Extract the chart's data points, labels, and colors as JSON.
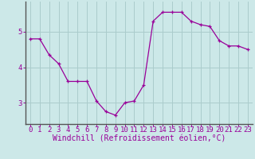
{
  "x": [
    0,
    1,
    2,
    3,
    4,
    5,
    6,
    7,
    8,
    9,
    10,
    11,
    12,
    13,
    14,
    15,
    16,
    17,
    18,
    19,
    20,
    21,
    22,
    23
  ],
  "y": [
    4.8,
    4.8,
    4.35,
    4.1,
    3.6,
    3.6,
    3.6,
    3.05,
    2.75,
    2.65,
    3.0,
    3.05,
    3.5,
    5.3,
    5.55,
    5.55,
    5.55,
    5.3,
    5.2,
    5.15,
    4.75,
    4.6,
    4.6,
    4.5
  ],
  "line_color": "#990099",
  "marker_color": "#990099",
  "bg_color": "#cce8e8",
  "grid_color": "#aacccc",
  "xlabel": "Windchill (Refroidissement éolien,°C)",
  "yticks": [
    3,
    4,
    5
  ],
  "xticks": [
    0,
    1,
    2,
    3,
    4,
    5,
    6,
    7,
    8,
    9,
    10,
    11,
    12,
    13,
    14,
    15,
    16,
    17,
    18,
    19,
    20,
    21,
    22,
    23
  ],
  "xlim": [
    -0.5,
    23.5
  ],
  "ylim": [
    2.4,
    5.85
  ],
  "xlabel_fontsize": 7,
  "tick_fontsize": 6.5,
  "label_color": "#990099",
  "spine_color": "#888888"
}
